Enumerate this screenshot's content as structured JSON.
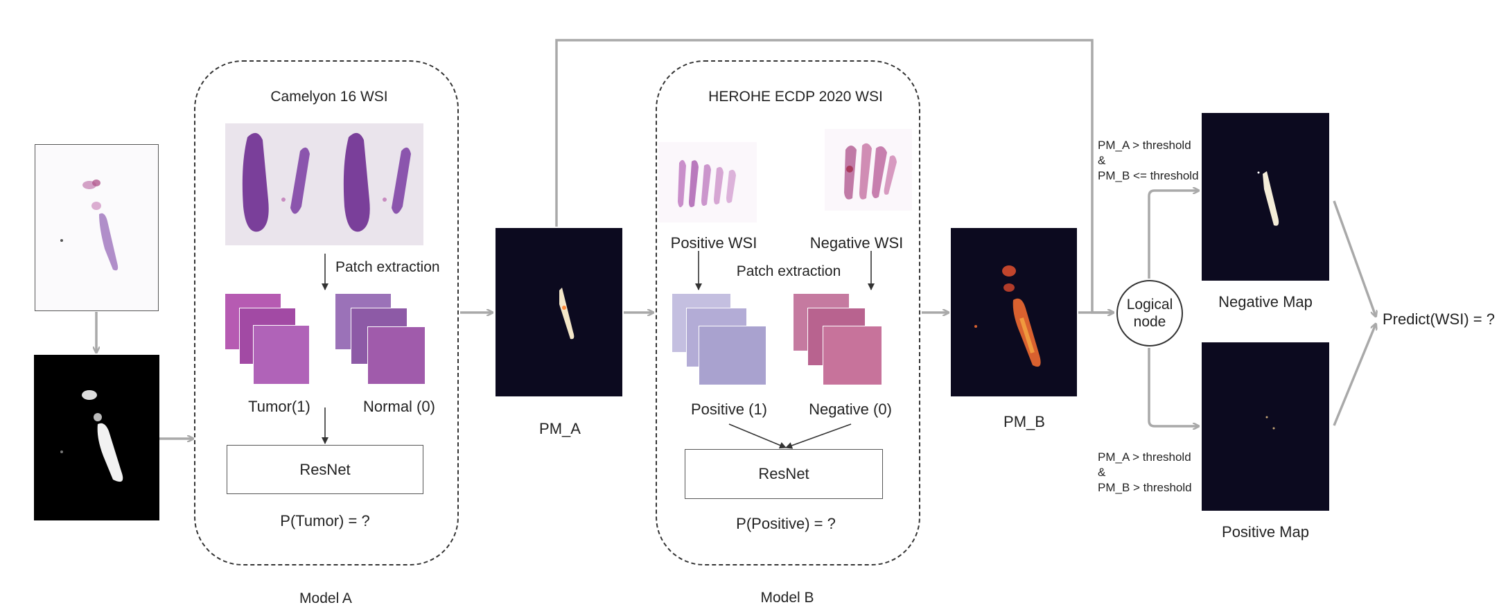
{
  "model_a": {
    "title": "Camelyon 16 WSI",
    "patch_extraction": "Patch extraction",
    "tumor_label": "Tumor(1)",
    "normal_label": "Normal (0)",
    "resnet": "ResNet",
    "prob": "P(Tumor) = ?",
    "caption": "Model A"
  },
  "pm_a": "PM_A",
  "model_b": {
    "title": "HEROHE ECDP 2020 WSI",
    "positive_wsi": "Positive WSI",
    "negative_wsi": "Negative WSI",
    "patch_extraction": "Patch extraction",
    "positive_label": "Positive (1)",
    "negative_label": "Negative (0)",
    "resnet": "ResNet",
    "prob": "P(Positive) = ?",
    "caption": "Model B"
  },
  "pm_b": "PM_B",
  "logical_node": {
    "line1": "Logical",
    "line2": "node"
  },
  "conditions": {
    "negative": {
      "line1": "PM_A > threshold",
      "line2": "&",
      "line3": "PM_B <= threshold"
    },
    "positive": {
      "line1": "PM_A > threshold",
      "line2": "&",
      "line3": "PM_B > threshold"
    }
  },
  "negative_map": "Negative Map",
  "positive_map": "Positive Map",
  "predict": "Predict(WSI) = ?",
  "colors": {
    "arrow": "#a9a9a9",
    "heatmap_bg": "#0c0a1f",
    "tissue_purple": "#8a4fa8",
    "he_pink": "#c36ab0"
  }
}
